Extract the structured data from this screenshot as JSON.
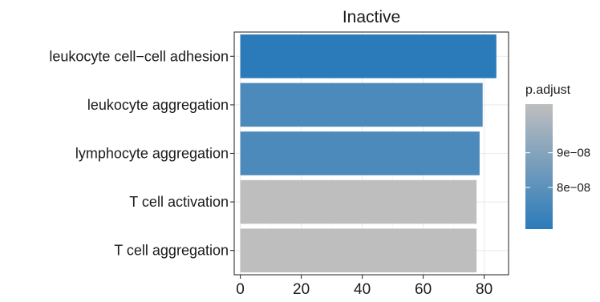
{
  "chart_data": {
    "type": "bar",
    "orientation": "horizontal",
    "title": "Inactive",
    "xlabel": "",
    "ylabel": "",
    "categories": [
      "leukocyte cell−cell adhesion",
      "leukocyte aggregation",
      "lymphocyte aggregation",
      "T cell activation",
      "T cell aggregation"
    ],
    "values": [
      84,
      79.5,
      78.5,
      77.5,
      77.5
    ],
    "p_adjust": [
      6.8e-08,
      7.6e-08,
      7.6e-08,
      1.04e-07,
      1.04e-07
    ],
    "xlim": [
      -2,
      88
    ],
    "x_ticks": [
      0,
      20,
      40,
      60,
      80
    ],
    "x_tick_labels": [
      "0",
      "20",
      "40",
      "60",
      "80"
    ],
    "grid": true,
    "legend": {
      "title": "p.adjust",
      "position": "right",
      "range": [
        6.8e-08,
        1.04e-07
      ],
      "ticks": [
        8e-08,
        9e-08
      ],
      "tick_labels": [
        "8e−08",
        "9e−08"
      ],
      "color_low": "#2b7bba",
      "color_high": "#bebebe"
    }
  }
}
